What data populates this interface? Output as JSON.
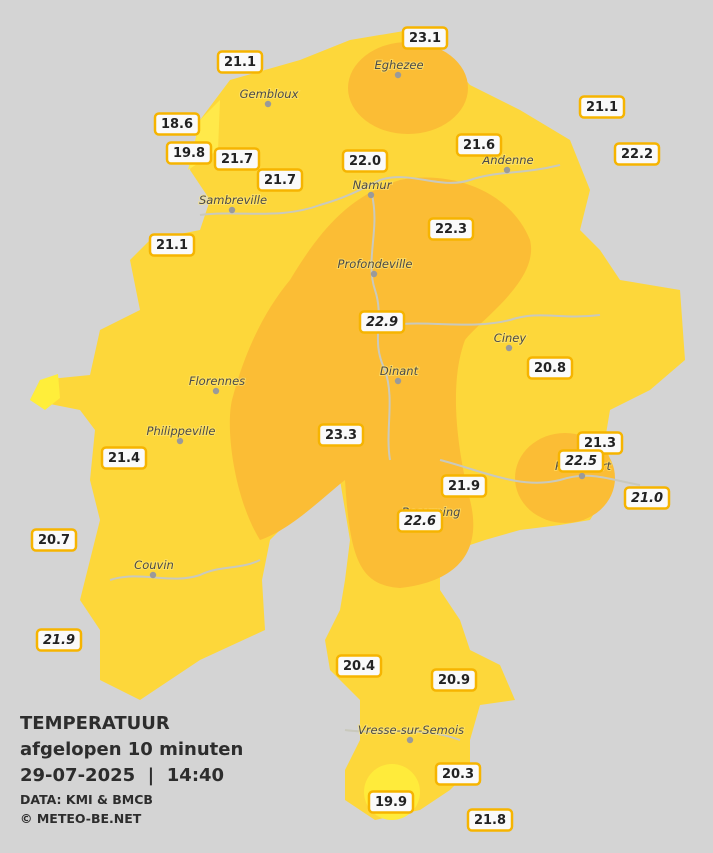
{
  "title": "TEMPERATUUR",
  "subtitle": "afgelopen 10 minuten",
  "datetime": "29-07-2025  |  14:40",
  "source": "DATA: KMI & BMCB",
  "copyright": "© METEO-BE.NET",
  "towns": [
    "Eghezee",
    "Gembloux",
    "Andenne",
    "Namur",
    "Sambreville",
    "Profondeville",
    "Ciney",
    "Dinant",
    "Florennes",
    "Philippeville",
    "Rochefort",
    "Beauraing",
    "Couvin",
    "Vresse-sur-Semois"
  ],
  "readings": [
    "23.1",
    "21.1",
    "18.6",
    "19.8",
    "21.7",
    "21.7",
    "22.0",
    "21.6",
    "21.1",
    "22.2",
    "21.1",
    "22.3",
    "22.9",
    "20.8",
    "23.3",
    "21.3",
    "21.4",
    "21.9",
    "21.0",
    "20.7",
    "21.9",
    "20.4",
    "20.9",
    "20.3",
    "19.9",
    "21.8",
    "22.6",
    "22.5"
  ]
}
